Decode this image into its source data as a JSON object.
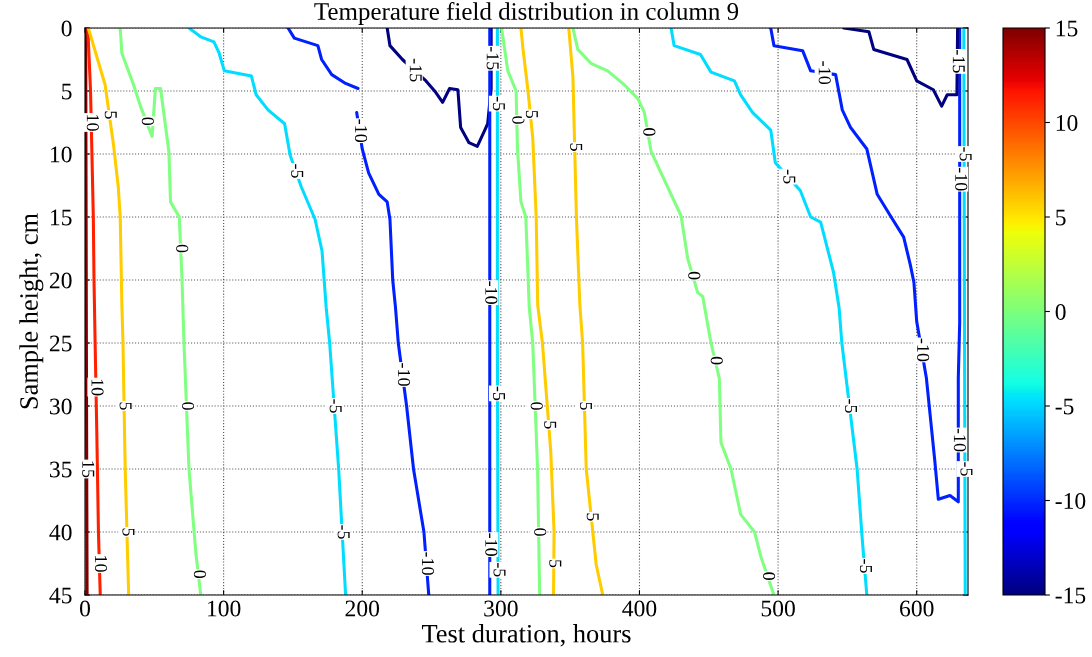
{
  "chart_data": {
    "type": "line",
    "title": "Temperature field distribution in column 9",
    "xlabel": "Test duration, hours",
    "ylabel": "Sample height, cm",
    "xlim": [
      0,
      637
    ],
    "xticks": [
      0,
      100,
      200,
      300,
      400,
      500,
      600
    ],
    "ylim": [
      45,
      0
    ],
    "yticks": [
      0,
      5,
      10,
      15,
      20,
      25,
      30,
      35,
      40,
      45
    ],
    "clim": [
      -15,
      15
    ],
    "cticks": [
      -15,
      -10,
      -5,
      0,
      5,
      10,
      15
    ],
    "grid": true,
    "legend": false,
    "marker": "none",
    "line_style": "solid",
    "series": [
      {
        "color": "#800000",
        "x": [
          0.5,
          1,
          1.5
        ],
        "values": [
          0,
          25,
          45
        ]
      },
      {
        "color": "#ff2000",
        "x": [
          2,
          4,
          5,
          6,
          6.5,
          7.3,
          8.5,
          9.7,
          11
        ],
        "values": [
          0,
          5,
          10,
          15,
          20,
          25,
          32,
          40,
          45
        ]
      },
      {
        "color": "#ffcc00",
        "x": [
          2.4,
          14.5,
          20.6,
          24,
          25.4,
          26.6,
          27.4,
          29,
          31.5
        ],
        "values": [
          0,
          4.5,
          9.3,
          12.6,
          15,
          22,
          25,
          35,
          45
        ]
      },
      {
        "color": "#80ff80",
        "x": [
          25.4,
          26.6,
          35,
          40,
          48.4,
          50.8,
          54.5,
          60.5,
          61.7,
          68,
          70,
          71.4,
          75,
          80,
          83.5
        ],
        "values": [
          0,
          2,
          4.5,
          6.2,
          8.6,
          4.8,
          4.8,
          9.8,
          13.8,
          15,
          20,
          25,
          35,
          41.7,
          45
        ]
      },
      {
        "color": "#00ddff",
        "x": [
          75,
          83.5,
          93,
          96.8,
          100.5,
          120,
          123.5,
          132,
          144,
          148,
          156,
          166,
          171,
          174,
          176.5,
          183,
          188
        ],
        "values": [
          0,
          0.7,
          1.1,
          2,
          3.4,
          3.8,
          5.3,
          6.5,
          7.6,
          10.1,
          12.6,
          15.2,
          17.7,
          22.2,
          25,
          35,
          45
        ]
      },
      {
        "color": "#0020ff",
        "x": [
          146.5,
          151,
          168,
          170.7,
          178,
          188,
          197,
          null,
          196,
          200,
          204.6,
          212,
          218,
          220,
          222,
          224,
          226,
          232,
          237,
          244.5,
          248
        ],
        "values": [
          0,
          0.8,
          1.4,
          2.5,
          3.7,
          4.4,
          4.8,
          null,
          6.7,
          9.6,
          11.5,
          13.2,
          13.8,
          15.2,
          20,
          22.2,
          25,
          30,
          35,
          40,
          45
        ]
      },
      {
        "color": "#000080",
        "x": [
          218,
          220,
          229,
          246,
          253,
          258,
          263,
          269,
          271,
          277,
          283,
          288,
          290.5,
          293,
          293
        ],
        "values": [
          0,
          1.4,
          2.5,
          4.2,
          5.1,
          5.9,
          4.8,
          4.9,
          7.9,
          9.1,
          9.4,
          8.2,
          7.6,
          4.8,
          0
        ]
      },
      {
        "color": "#0020ff",
        "x": [
          292,
          292,
          292
        ],
        "values": [
          0,
          25,
          45
        ]
      },
      {
        "color": "#00ddff",
        "x": [
          297.5,
          297.5,
          298
        ],
        "values": [
          0,
          25,
          45
        ]
      },
      {
        "color": "#80ff80",
        "x": [
          300.5,
          305,
          311,
          312,
          314.5,
          318,
          320.5,
          323,
          326.5,
          328
        ],
        "values": [
          0,
          3.4,
          5,
          9.6,
          13.8,
          15,
          22.2,
          25,
          35,
          45
        ]
      },
      {
        "color": "#ffcc00",
        "x": [
          314.5,
          316,
          319.6,
          323,
          325.5,
          326.6,
          330,
          336,
          338.4,
          338
        ],
        "values": [
          0,
          1.7,
          5,
          8.7,
          15,
          22,
          25,
          33.6,
          40,
          45
        ]
      },
      {
        "color": "#ffcc00",
        "x": [
          349,
          352,
          354.5,
          357,
          359,
          361.6,
          368.8,
          373.5
        ],
        "values": [
          0,
          3.9,
          15,
          22,
          25,
          35,
          42.6,
          45
        ]
      },
      {
        "color": "#80ff80",
        "x": [
          352,
          355.5,
          365,
          377,
          389,
          398.8,
          403.5,
          408.4,
          416.8,
          430,
          434.8,
          442,
          445.6,
          451.6,
          457.6,
          458.8,
          466,
          473,
          483,
          487.7,
          497
        ],
        "values": [
          0,
          1.7,
          2.8,
          3.4,
          4.5,
          5.6,
          6.7,
          9.8,
          11.8,
          14.9,
          18.3,
          21,
          21.3,
          25,
          27.8,
          32.9,
          35,
          38.6,
          40,
          42,
          45
        ]
      },
      {
        "color": "#00ddff",
        "x": [
          422.8,
          425,
          444,
          451.6,
          468.5,
          473,
          481.5,
          494.7,
          498,
          516,
          523.5,
          530.7,
          540,
          544,
          546,
          557,
          560.6,
          564
        ],
        "values": [
          0,
          1.4,
          2.1,
          3.5,
          4.2,
          5.3,
          6.7,
          8.1,
          10.7,
          12.9,
          15,
          15.4,
          19.4,
          22.2,
          25,
          35,
          40.4,
          45
        ]
      },
      {
        "color": "#0020ff",
        "x": [
          494.7,
          497,
          517.7,
          523.5,
          541.5,
          546.3,
          552.3,
          564,
          571.5,
          581,
          590.6,
          595.4,
          598,
          600,
          607,
          613,
          615.6,
          624,
          630,
          630,
          631,
          631
        ],
        "values": [
          0,
          1.4,
          1.8,
          3.4,
          3.7,
          6.5,
          7.9,
          9.6,
          13.2,
          14.9,
          16.6,
          18.8,
          20.2,
          23.3,
          27.8,
          34.3,
          37.4,
          37.1,
          37.6,
          27.8,
          23.4,
          0
        ]
      },
      {
        "color": "#000080",
        "x": [
          547.5,
          565.5,
          569,
          593,
          600,
          612,
          618,
          622,
          629,
          629.5
        ],
        "values": [
          0,
          0.3,
          1.7,
          2.5,
          4.2,
          4.9,
          6.2,
          5.3,
          5.3,
          0
        ]
      },
      {
        "color": "#00ddff",
        "x": [
          634,
          634.5,
          635
        ],
        "values": [
          0,
          25,
          45
        ]
      }
    ],
    "annotations": [
      {
        "text": "15",
        "x": 1.25,
        "y": 35
      },
      {
        "text": "10",
        "x": 4.5,
        "y": 7.5
      },
      {
        "text": "10",
        "x": 7.9,
        "y": 28.5
      },
      {
        "text": "10",
        "x": 10.4,
        "y": 42.5
      },
      {
        "text": "5",
        "x": 17.5,
        "y": 6.9
      },
      {
        "text": "5",
        "x": 28.2,
        "y": 30
      },
      {
        "text": "5",
        "x": 30.25,
        "y": 40
      },
      {
        "text": "0",
        "x": 44.2,
        "y": 7.4
      },
      {
        "text": "0",
        "x": 69,
        "y": 17.5
      },
      {
        "text": "0",
        "x": 73.2,
        "y": 30
      },
      {
        "text": "0",
        "x": 81.75,
        "y": 43.35
      },
      {
        "text": "-5",
        "x": 152,
        "y": 11.35
      },
      {
        "text": "-5",
        "x": 179.75,
        "y": 30
      },
      {
        "text": "-5",
        "x": 185.5,
        "y": 40
      },
      {
        "text": "-10",
        "x": 198,
        "y": 8.15
      },
      {
        "text": "-10",
        "x": 229,
        "y": 27.5
      },
      {
        "text": "-10",
        "x": 246.25,
        "y": 42.5
      },
      {
        "text": "-15",
        "x": 237.5,
        "y": 3.35
      },
      {
        "text": "-15",
        "x": 293,
        "y": 2.4
      },
      {
        "text": "-10",
        "x": 292,
        "y": 21
      },
      {
        "text": "-10",
        "x": 292,
        "y": 41
      },
      {
        "text": "-5",
        "x": 297.5,
        "y": 6
      },
      {
        "text": "-5",
        "x": 297.6,
        "y": 29
      },
      {
        "text": "-5",
        "x": 297.95,
        "y": 43
      },
      {
        "text": "0",
        "x": 311.5,
        "y": 7.3
      },
      {
        "text": "0",
        "x": 324.75,
        "y": 30
      },
      {
        "text": "0",
        "x": 327.25,
        "y": 40
      },
      {
        "text": "5",
        "x": 321.3,
        "y": 6.85
      },
      {
        "text": "5",
        "x": 334.5,
        "y": 31.5
      },
      {
        "text": "5",
        "x": 338.2,
        "y": 42.5
      },
      {
        "text": "5",
        "x": 353.25,
        "y": 9.45
      },
      {
        "text": "5",
        "x": 360.3,
        "y": 30
      },
      {
        "text": "5",
        "x": 365.2,
        "y": 38.8
      },
      {
        "text": "0",
        "x": 406,
        "y": 8.25
      },
      {
        "text": "0",
        "x": 438.4,
        "y": 19.65
      },
      {
        "text": "0",
        "x": 454.6,
        "y": 26.4
      },
      {
        "text": "0",
        "x": 492.35,
        "y": 43.5
      },
      {
        "text": "-5",
        "x": 507,
        "y": 11.8
      },
      {
        "text": "-5",
        "x": 551.5,
        "y": 30
      },
      {
        "text": "-5",
        "x": 562.3,
        "y": 42.7
      },
      {
        "text": "-10",
        "x": 532.5,
        "y": 3.55
      },
      {
        "text": "-10",
        "x": 603.5,
        "y": 25.55
      },
      {
        "text": "-10",
        "x": 630,
        "y": 32.7
      },
      {
        "text": "-10",
        "x": 631,
        "y": 12
      },
      {
        "text": "-15",
        "x": 629.25,
        "y": 2.65
      },
      {
        "text": "-5",
        "x": 634.2,
        "y": 10
      },
      {
        "text": "-5",
        "x": 634.8,
        "y": 35
      }
    ]
  }
}
